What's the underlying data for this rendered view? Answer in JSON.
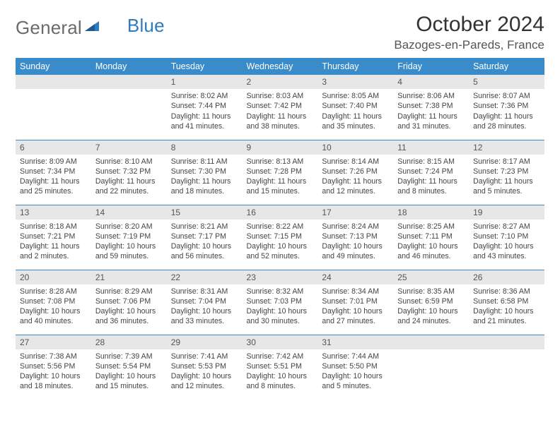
{
  "logo": {
    "word1": "General",
    "word2": "Blue"
  },
  "title": "October 2024",
  "location": "Bazoges-en-Pareds, France",
  "day_headers": [
    "Sunday",
    "Monday",
    "Tuesday",
    "Wednesday",
    "Thursday",
    "Friday",
    "Saturday"
  ],
  "colors": {
    "header_bg": "#3a8bca",
    "header_text": "#ffffff",
    "daynum_bg": "#e7e7e7",
    "week_border": "#3a8bca",
    "logo_gray": "#6b6b6b",
    "logo_blue": "#2f7bbf"
  },
  "weeks": [
    [
      {
        "n": "",
        "sunrise": "",
        "sunset": "",
        "daylight": ""
      },
      {
        "n": "",
        "sunrise": "",
        "sunset": "",
        "daylight": ""
      },
      {
        "n": "1",
        "sunrise": "Sunrise: 8:02 AM",
        "sunset": "Sunset: 7:44 PM",
        "daylight": "Daylight: 11 hours and 41 minutes."
      },
      {
        "n": "2",
        "sunrise": "Sunrise: 8:03 AM",
        "sunset": "Sunset: 7:42 PM",
        "daylight": "Daylight: 11 hours and 38 minutes."
      },
      {
        "n": "3",
        "sunrise": "Sunrise: 8:05 AM",
        "sunset": "Sunset: 7:40 PM",
        "daylight": "Daylight: 11 hours and 35 minutes."
      },
      {
        "n": "4",
        "sunrise": "Sunrise: 8:06 AM",
        "sunset": "Sunset: 7:38 PM",
        "daylight": "Daylight: 11 hours and 31 minutes."
      },
      {
        "n": "5",
        "sunrise": "Sunrise: 8:07 AM",
        "sunset": "Sunset: 7:36 PM",
        "daylight": "Daylight: 11 hours and 28 minutes."
      }
    ],
    [
      {
        "n": "6",
        "sunrise": "Sunrise: 8:09 AM",
        "sunset": "Sunset: 7:34 PM",
        "daylight": "Daylight: 11 hours and 25 minutes."
      },
      {
        "n": "7",
        "sunrise": "Sunrise: 8:10 AM",
        "sunset": "Sunset: 7:32 PM",
        "daylight": "Daylight: 11 hours and 22 minutes."
      },
      {
        "n": "8",
        "sunrise": "Sunrise: 8:11 AM",
        "sunset": "Sunset: 7:30 PM",
        "daylight": "Daylight: 11 hours and 18 minutes."
      },
      {
        "n": "9",
        "sunrise": "Sunrise: 8:13 AM",
        "sunset": "Sunset: 7:28 PM",
        "daylight": "Daylight: 11 hours and 15 minutes."
      },
      {
        "n": "10",
        "sunrise": "Sunrise: 8:14 AM",
        "sunset": "Sunset: 7:26 PM",
        "daylight": "Daylight: 11 hours and 12 minutes."
      },
      {
        "n": "11",
        "sunrise": "Sunrise: 8:15 AM",
        "sunset": "Sunset: 7:24 PM",
        "daylight": "Daylight: 11 hours and 8 minutes."
      },
      {
        "n": "12",
        "sunrise": "Sunrise: 8:17 AM",
        "sunset": "Sunset: 7:23 PM",
        "daylight": "Daylight: 11 hours and 5 minutes."
      }
    ],
    [
      {
        "n": "13",
        "sunrise": "Sunrise: 8:18 AM",
        "sunset": "Sunset: 7:21 PM",
        "daylight": "Daylight: 11 hours and 2 minutes."
      },
      {
        "n": "14",
        "sunrise": "Sunrise: 8:20 AM",
        "sunset": "Sunset: 7:19 PM",
        "daylight": "Daylight: 10 hours and 59 minutes."
      },
      {
        "n": "15",
        "sunrise": "Sunrise: 8:21 AM",
        "sunset": "Sunset: 7:17 PM",
        "daylight": "Daylight: 10 hours and 56 minutes."
      },
      {
        "n": "16",
        "sunrise": "Sunrise: 8:22 AM",
        "sunset": "Sunset: 7:15 PM",
        "daylight": "Daylight: 10 hours and 52 minutes."
      },
      {
        "n": "17",
        "sunrise": "Sunrise: 8:24 AM",
        "sunset": "Sunset: 7:13 PM",
        "daylight": "Daylight: 10 hours and 49 minutes."
      },
      {
        "n": "18",
        "sunrise": "Sunrise: 8:25 AM",
        "sunset": "Sunset: 7:11 PM",
        "daylight": "Daylight: 10 hours and 46 minutes."
      },
      {
        "n": "19",
        "sunrise": "Sunrise: 8:27 AM",
        "sunset": "Sunset: 7:10 PM",
        "daylight": "Daylight: 10 hours and 43 minutes."
      }
    ],
    [
      {
        "n": "20",
        "sunrise": "Sunrise: 8:28 AM",
        "sunset": "Sunset: 7:08 PM",
        "daylight": "Daylight: 10 hours and 40 minutes."
      },
      {
        "n": "21",
        "sunrise": "Sunrise: 8:29 AM",
        "sunset": "Sunset: 7:06 PM",
        "daylight": "Daylight: 10 hours and 36 minutes."
      },
      {
        "n": "22",
        "sunrise": "Sunrise: 8:31 AM",
        "sunset": "Sunset: 7:04 PM",
        "daylight": "Daylight: 10 hours and 33 minutes."
      },
      {
        "n": "23",
        "sunrise": "Sunrise: 8:32 AM",
        "sunset": "Sunset: 7:03 PM",
        "daylight": "Daylight: 10 hours and 30 minutes."
      },
      {
        "n": "24",
        "sunrise": "Sunrise: 8:34 AM",
        "sunset": "Sunset: 7:01 PM",
        "daylight": "Daylight: 10 hours and 27 minutes."
      },
      {
        "n": "25",
        "sunrise": "Sunrise: 8:35 AM",
        "sunset": "Sunset: 6:59 PM",
        "daylight": "Daylight: 10 hours and 24 minutes."
      },
      {
        "n": "26",
        "sunrise": "Sunrise: 8:36 AM",
        "sunset": "Sunset: 6:58 PM",
        "daylight": "Daylight: 10 hours and 21 minutes."
      }
    ],
    [
      {
        "n": "27",
        "sunrise": "Sunrise: 7:38 AM",
        "sunset": "Sunset: 5:56 PM",
        "daylight": "Daylight: 10 hours and 18 minutes."
      },
      {
        "n": "28",
        "sunrise": "Sunrise: 7:39 AM",
        "sunset": "Sunset: 5:54 PM",
        "daylight": "Daylight: 10 hours and 15 minutes."
      },
      {
        "n": "29",
        "sunrise": "Sunrise: 7:41 AM",
        "sunset": "Sunset: 5:53 PM",
        "daylight": "Daylight: 10 hours and 12 minutes."
      },
      {
        "n": "30",
        "sunrise": "Sunrise: 7:42 AM",
        "sunset": "Sunset: 5:51 PM",
        "daylight": "Daylight: 10 hours and 8 minutes."
      },
      {
        "n": "31",
        "sunrise": "Sunrise: 7:44 AM",
        "sunset": "Sunset: 5:50 PM",
        "daylight": "Daylight: 10 hours and 5 minutes."
      },
      {
        "n": "",
        "sunrise": "",
        "sunset": "",
        "daylight": ""
      },
      {
        "n": "",
        "sunrise": "",
        "sunset": "",
        "daylight": ""
      }
    ]
  ]
}
